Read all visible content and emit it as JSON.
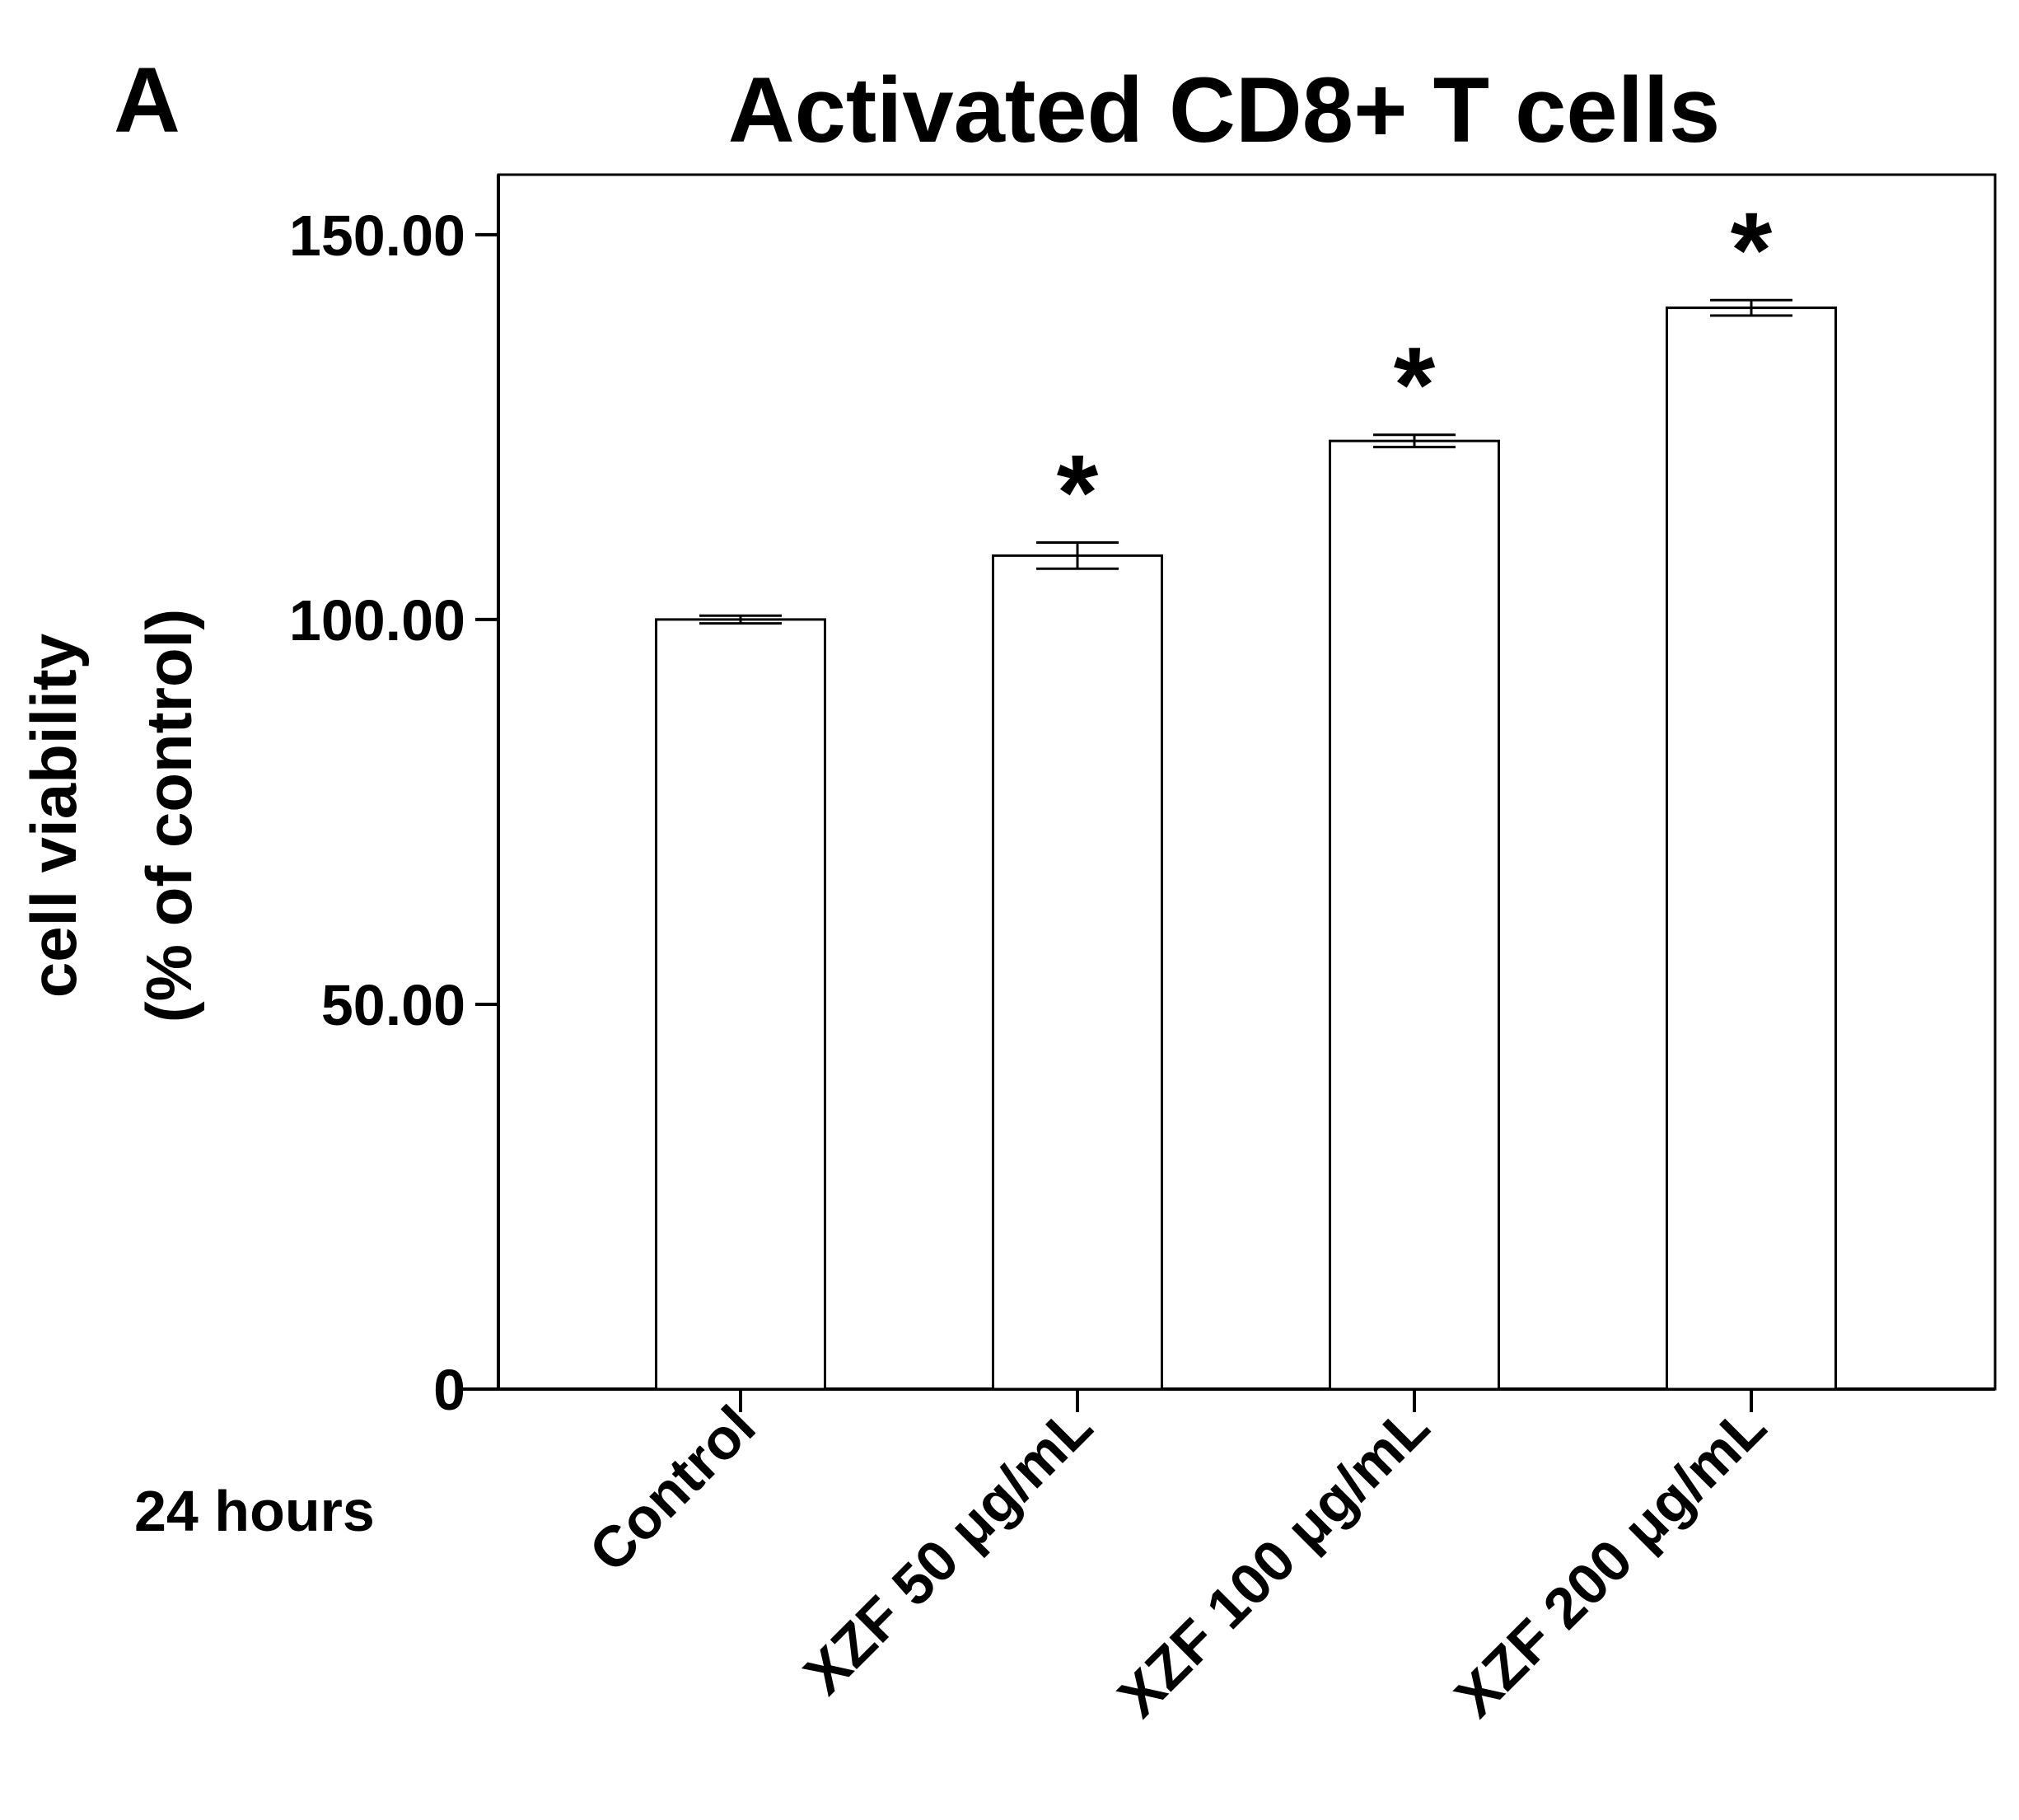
{
  "panel_label": "A",
  "condition_label": "24 hours",
  "chart_data": {
    "type": "bar",
    "title": "Activated CD8+ T cells",
    "ylabel_lines": [
      "cell viability",
      "(% of control)"
    ],
    "xlabel": "",
    "categories": [
      "Control",
      "XZF 50 μg/mL",
      "XZF 100 μg/mL",
      "XZF 200 μg/mL"
    ],
    "values": [
      100.0,
      108.3,
      123.2,
      140.5
    ],
    "errors": [
      0.5,
      1.7,
      0.8,
      1.0
    ],
    "significance": [
      "",
      "*",
      "*",
      "*"
    ],
    "yticks": [
      0,
      50,
      100,
      150
    ],
    "ytick_labels": [
      "0",
      "50.00",
      "100.00",
      "150.00"
    ],
    "ylim": [
      0,
      157.8
    ],
    "bar_fill": "#ffffff",
    "bar_stroke": "#000000",
    "grid": false,
    "legend": "none"
  }
}
